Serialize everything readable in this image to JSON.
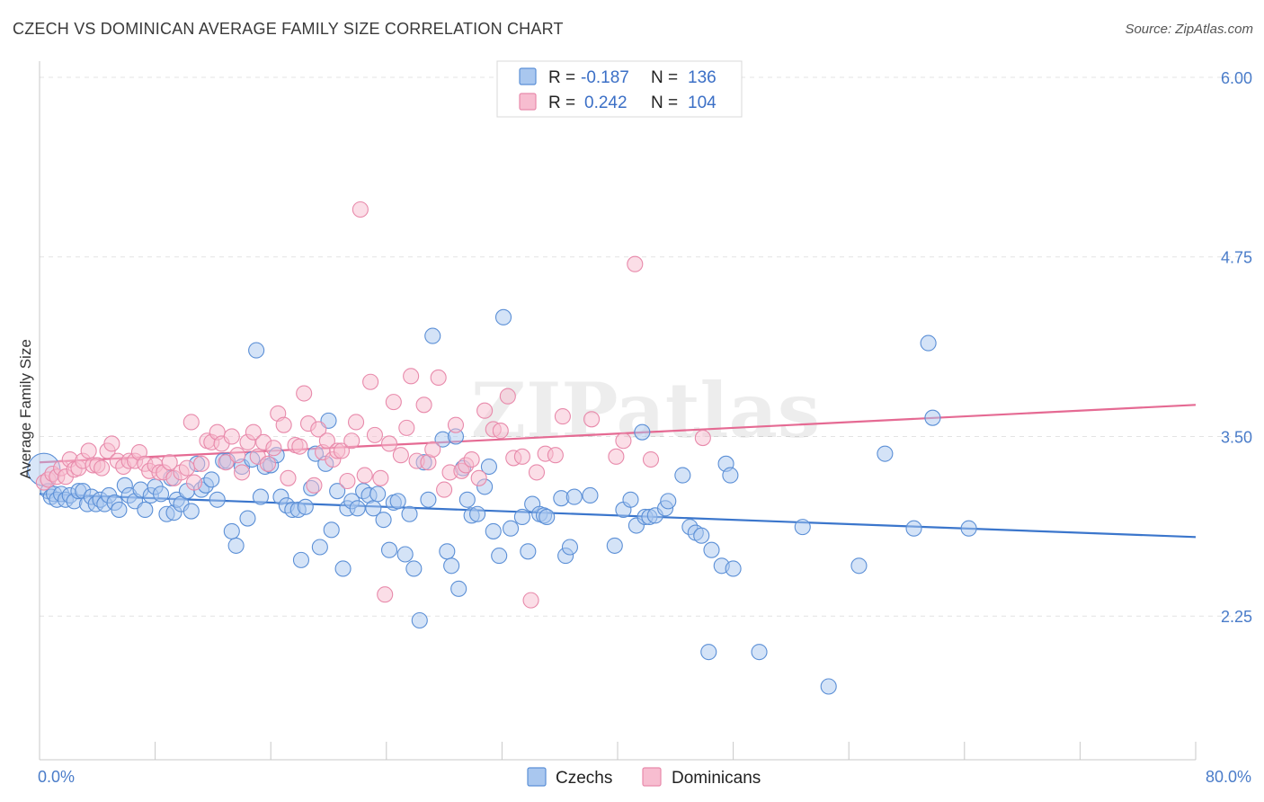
{
  "title": "CZECH VS DOMINICAN AVERAGE FAMILY SIZE CORRELATION CHART",
  "source": "Source: ZipAtlas.com",
  "colors": {
    "czech_fill": "#a9c7ef",
    "czech_stroke": "#5b8fd6",
    "czech_line": "#3b76cc",
    "dominican_fill": "#f7bdd0",
    "dominican_stroke": "#e88aab",
    "dominican_line": "#e56a93",
    "tick_text": "#4a7cc9",
    "grid": "#e3e3e3"
  },
  "legend": {
    "rows": [
      {
        "r_label": "R = ",
        "r_value": "-0.187",
        "n_label": "N = ",
        "n_value": "136"
      },
      {
        "r_label": "R = ",
        "r_value": "0.242",
        "n_label": "N = ",
        "n_value": "104"
      }
    ]
  },
  "bottom_legend": [
    "Czechs",
    "Dominicans"
  ],
  "chart_data": {
    "type": "scatter",
    "title": "CZECH VS DOMINICAN AVERAGE FAMILY SIZE CORRELATION CHART",
    "xlabel": "",
    "ylabel": "Average Family Size",
    "xlim": [
      0,
      80
    ],
    "ylim": [
      1.25,
      6.1
    ],
    "x_tick_labels": [
      "0.0%",
      "80.0%"
    ],
    "y_ticks": [
      2.25,
      3.5,
      4.75,
      6.0
    ],
    "y_tick_labels": [
      "2.25",
      "3.50",
      "4.75",
      "6.00"
    ],
    "grid": true,
    "legend_position": "top-center",
    "watermark": "ZIPatlas",
    "series": [
      {
        "name": "Czechs",
        "trend": {
          "x": [
            0,
            80
          ],
          "y": [
            3.1,
            2.8
          ]
        },
        "points": [
          [
            0.3,
            3.27
          ],
          [
            0.6,
            3.12
          ],
          [
            0.8,
            3.08
          ],
          [
            1.0,
            3.1
          ],
          [
            1.2,
            3.06
          ],
          [
            1.5,
            3.1
          ],
          [
            1.8,
            3.06
          ],
          [
            2.1,
            3.09
          ],
          [
            2.4,
            3.05
          ],
          [
            2.7,
            3.12
          ],
          [
            3.0,
            3.12
          ],
          [
            3.3,
            3.03
          ],
          [
            3.6,
            3.08
          ],
          [
            3.9,
            3.03
          ],
          [
            4.2,
            3.06
          ],
          [
            4.5,
            3.03
          ],
          [
            4.8,
            3.09
          ],
          [
            5.2,
            3.04
          ],
          [
            5.5,
            2.99
          ],
          [
            5.9,
            3.16
          ],
          [
            6.2,
            3.09
          ],
          [
            6.6,
            3.05
          ],
          [
            7.0,
            3.13
          ],
          [
            7.3,
            2.99
          ],
          [
            7.7,
            3.09
          ],
          [
            8.0,
            3.15
          ],
          [
            8.4,
            3.1
          ],
          [
            8.8,
            2.96
          ],
          [
            9.1,
            3.21
          ],
          [
            9.3,
            2.97
          ],
          [
            9.5,
            3.06
          ],
          [
            9.8,
            3.03
          ],
          [
            10.2,
            3.12
          ],
          [
            10.5,
            2.98
          ],
          [
            10.9,
            3.31
          ],
          [
            11.2,
            3.13
          ],
          [
            11.5,
            3.16
          ],
          [
            11.9,
            3.2
          ],
          [
            12.3,
            3.06
          ],
          [
            12.7,
            3.33
          ],
          [
            13.0,
            3.33
          ],
          [
            13.3,
            2.84
          ],
          [
            13.6,
            2.74
          ],
          [
            14.0,
            3.29
          ],
          [
            14.4,
            2.93
          ],
          [
            14.7,
            3.34
          ],
          [
            15.0,
            4.1
          ],
          [
            15.3,
            3.08
          ],
          [
            15.6,
            3.29
          ],
          [
            16.0,
            3.3
          ],
          [
            16.4,
            3.37
          ],
          [
            16.7,
            3.08
          ],
          [
            17.1,
            3.02
          ],
          [
            17.5,
            2.99
          ],
          [
            17.9,
            2.99
          ],
          [
            18.1,
            2.64
          ],
          [
            18.4,
            3.01
          ],
          [
            18.8,
            3.14
          ],
          [
            19.1,
            3.38
          ],
          [
            19.4,
            2.73
          ],
          [
            19.8,
            3.31
          ],
          [
            20.0,
            3.61
          ],
          [
            20.2,
            2.85
          ],
          [
            20.6,
            3.12
          ],
          [
            21.0,
            2.58
          ],
          [
            21.3,
            3.0
          ],
          [
            21.6,
            3.05
          ],
          [
            22.0,
            3.0
          ],
          [
            22.4,
            3.12
          ],
          [
            22.8,
            3.09
          ],
          [
            23.1,
            3.0
          ],
          [
            23.4,
            3.1
          ],
          [
            23.8,
            2.92
          ],
          [
            24.2,
            2.71
          ],
          [
            24.5,
            3.04
          ],
          [
            24.8,
            3.05
          ],
          [
            25.3,
            2.68
          ],
          [
            25.6,
            2.96
          ],
          [
            25.9,
            2.58
          ],
          [
            26.3,
            2.22
          ],
          [
            26.6,
            3.32
          ],
          [
            26.9,
            3.06
          ],
          [
            27.2,
            4.2
          ],
          [
            27.9,
            3.48
          ],
          [
            28.2,
            2.7
          ],
          [
            28.5,
            2.6
          ],
          [
            28.8,
            3.5
          ],
          [
            29.0,
            2.44
          ],
          [
            29.3,
            3.28
          ],
          [
            29.6,
            3.06
          ],
          [
            29.9,
            2.95
          ],
          [
            30.3,
            2.96
          ],
          [
            30.8,
            3.15
          ],
          [
            31.1,
            3.29
          ],
          [
            31.4,
            2.84
          ],
          [
            31.8,
            2.67
          ],
          [
            32.1,
            4.33
          ],
          [
            32.6,
            2.86
          ],
          [
            33.4,
            2.94
          ],
          [
            33.8,
            2.7
          ],
          [
            34.1,
            3.03
          ],
          [
            34.6,
            2.96
          ],
          [
            34.9,
            2.95
          ],
          [
            35.1,
            2.94
          ],
          [
            36.1,
            3.07
          ],
          [
            36.4,
            2.67
          ],
          [
            36.7,
            2.73
          ],
          [
            37.0,
            3.08
          ],
          [
            38.1,
            3.09
          ],
          [
            39.8,
            2.74
          ],
          [
            40.4,
            2.99
          ],
          [
            40.9,
            3.06
          ],
          [
            41.3,
            2.88
          ],
          [
            41.7,
            3.53
          ],
          [
            41.9,
            2.94
          ],
          [
            42.2,
            2.94
          ],
          [
            42.6,
            2.95
          ],
          [
            43.3,
            3.0
          ],
          [
            43.5,
            3.05
          ],
          [
            44.5,
            3.23
          ],
          [
            45.0,
            2.87
          ],
          [
            45.4,
            2.83
          ],
          [
            45.8,
            2.81
          ],
          [
            46.3,
            2.0
          ],
          [
            46.5,
            2.71
          ],
          [
            47.2,
            2.6
          ],
          [
            47.5,
            3.31
          ],
          [
            47.8,
            3.23
          ],
          [
            48.0,
            2.58
          ],
          [
            49.8,
            2.0
          ],
          [
            52.8,
            2.87
          ],
          [
            54.6,
            1.76
          ],
          [
            56.7,
            2.6
          ],
          [
            58.5,
            3.38
          ],
          [
            60.5,
            2.86
          ],
          [
            61.5,
            4.15
          ],
          [
            61.8,
            3.63
          ],
          [
            64.3,
            2.86
          ]
        ]
      },
      {
        "name": "Dominicans",
        "trend": {
          "x": [
            0,
            80
          ],
          "y": [
            3.32,
            3.72
          ]
        },
        "points": [
          [
            0.3,
            3.18
          ],
          [
            0.6,
            3.2
          ],
          [
            0.9,
            3.24
          ],
          [
            1.2,
            3.22
          ],
          [
            1.5,
            3.28
          ],
          [
            1.8,
            3.22
          ],
          [
            2.1,
            3.34
          ],
          [
            2.4,
            3.27
          ],
          [
            2.7,
            3.28
          ],
          [
            3.0,
            3.33
          ],
          [
            3.4,
            3.4
          ],
          [
            3.7,
            3.3
          ],
          [
            4.0,
            3.3
          ],
          [
            4.3,
            3.28
          ],
          [
            4.7,
            3.4
          ],
          [
            5.0,
            3.45
          ],
          [
            5.4,
            3.33
          ],
          [
            5.8,
            3.29
          ],
          [
            6.2,
            3.33
          ],
          [
            6.6,
            3.33
          ],
          [
            6.9,
            3.39
          ],
          [
            7.3,
            3.31
          ],
          [
            7.6,
            3.26
          ],
          [
            8.0,
            3.3
          ],
          [
            8.3,
            3.25
          ],
          [
            8.6,
            3.25
          ],
          [
            9.0,
            3.32
          ],
          [
            9.3,
            3.21
          ],
          [
            9.8,
            3.25
          ],
          [
            10.2,
            3.28
          ],
          [
            10.5,
            3.6
          ],
          [
            10.7,
            3.18
          ],
          [
            11.2,
            3.31
          ],
          [
            11.6,
            3.47
          ],
          [
            11.9,
            3.46
          ],
          [
            12.3,
            3.53
          ],
          [
            12.6,
            3.45
          ],
          [
            12.9,
            3.32
          ],
          [
            13.3,
            3.5
          ],
          [
            13.7,
            3.37
          ],
          [
            14.0,
            3.25
          ],
          [
            14.4,
            3.46
          ],
          [
            14.8,
            3.53
          ],
          [
            15.1,
            3.36
          ],
          [
            15.5,
            3.46
          ],
          [
            15.8,
            3.31
          ],
          [
            16.2,
            3.42
          ],
          [
            16.5,
            3.66
          ],
          [
            16.9,
            3.58
          ],
          [
            17.2,
            3.21
          ],
          [
            17.7,
            3.44
          ],
          [
            18.0,
            3.43
          ],
          [
            18.3,
            3.8
          ],
          [
            18.6,
            3.59
          ],
          [
            19.0,
            3.16
          ],
          [
            19.3,
            3.55
          ],
          [
            19.6,
            3.39
          ],
          [
            19.9,
            3.47
          ],
          [
            20.3,
            3.34
          ],
          [
            20.6,
            3.4
          ],
          [
            20.9,
            3.4
          ],
          [
            21.3,
            3.19
          ],
          [
            21.6,
            3.47
          ],
          [
            21.9,
            3.6
          ],
          [
            22.2,
            5.08
          ],
          [
            22.5,
            3.23
          ],
          [
            22.9,
            3.88
          ],
          [
            23.2,
            3.51
          ],
          [
            23.6,
            3.21
          ],
          [
            23.9,
            2.4
          ],
          [
            24.2,
            3.45
          ],
          [
            24.5,
            3.74
          ],
          [
            25.0,
            3.37
          ],
          [
            25.4,
            3.56
          ],
          [
            25.7,
            3.92
          ],
          [
            26.1,
            3.33
          ],
          [
            26.6,
            3.72
          ],
          [
            26.9,
            3.32
          ],
          [
            27.2,
            3.41
          ],
          [
            27.6,
            3.91
          ],
          [
            28.0,
            3.13
          ],
          [
            28.4,
            3.25
          ],
          [
            28.8,
            3.58
          ],
          [
            29.2,
            3.26
          ],
          [
            29.5,
            3.3
          ],
          [
            29.9,
            3.34
          ],
          [
            30.4,
            3.21
          ],
          [
            30.8,
            3.68
          ],
          [
            31.4,
            3.55
          ],
          [
            31.9,
            3.54
          ],
          [
            32.4,
            3.78
          ],
          [
            32.8,
            3.35
          ],
          [
            33.4,
            3.36
          ],
          [
            34.0,
            2.36
          ],
          [
            34.4,
            3.25
          ],
          [
            35.0,
            3.38
          ],
          [
            35.7,
            3.37
          ],
          [
            36.2,
            3.64
          ],
          [
            38.2,
            3.62
          ],
          [
            39.9,
            3.36
          ],
          [
            40.4,
            3.47
          ],
          [
            41.2,
            4.7
          ],
          [
            42.3,
            3.34
          ],
          [
            45.9,
            3.49
          ]
        ]
      }
    ]
  }
}
